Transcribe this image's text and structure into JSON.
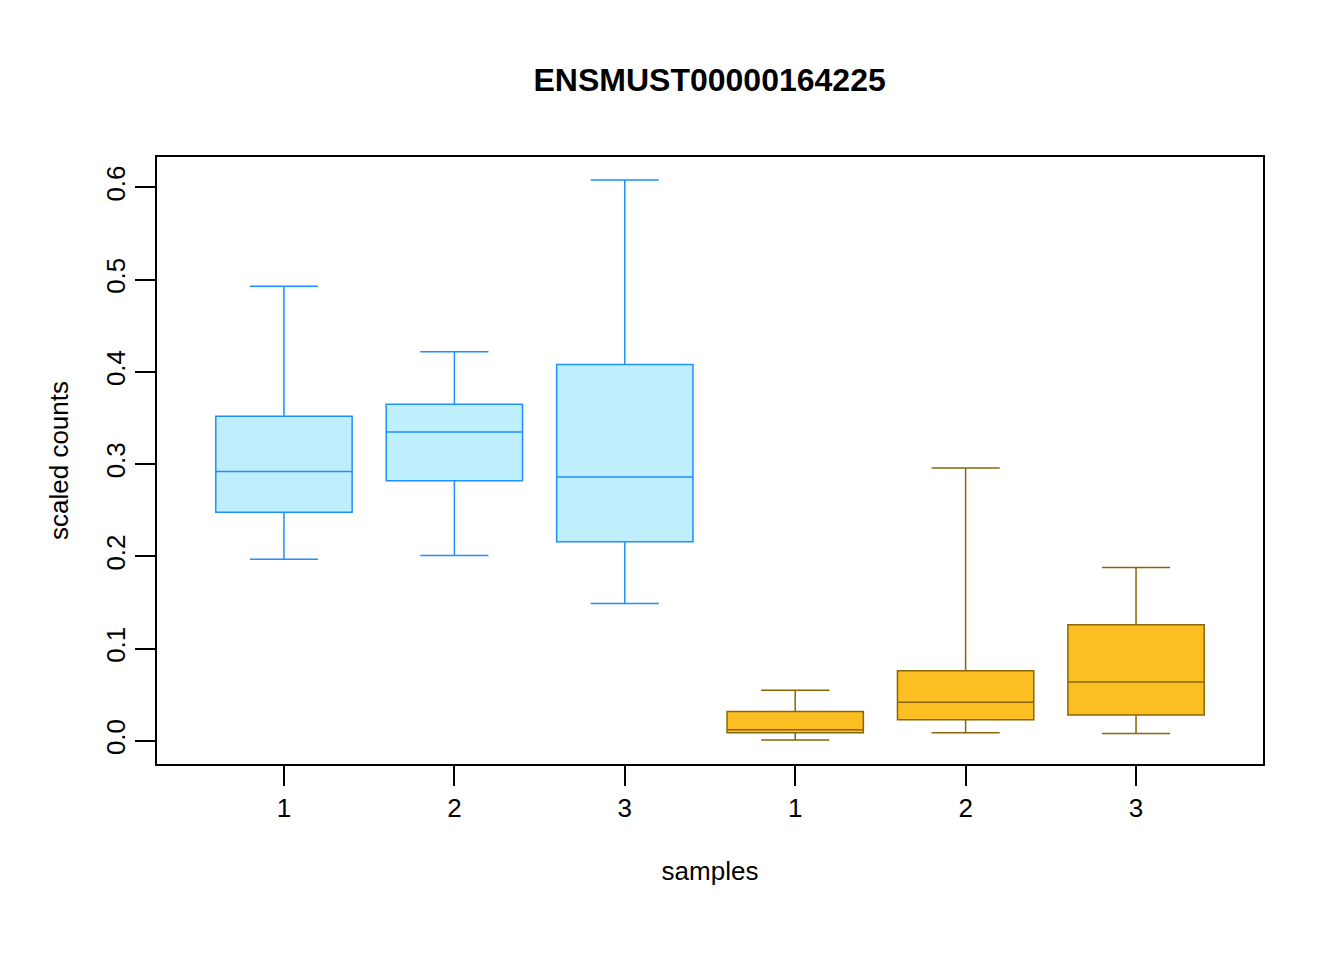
{
  "chart_data": {
    "type": "box",
    "title": "ENSMUST00000164225",
    "x_label": "samples",
    "y_label": "scaled counts",
    "categories": [
      "1",
      "2",
      "3",
      "1",
      "2",
      "3"
    ],
    "ylim": [
      -0.025,
      0.633
    ],
    "yticks": [
      {
        "value": 0,
        "label": "0.0"
      },
      0.1,
      0.2,
      0.3,
      0.4,
      0.5,
      0.6
    ],
    "grid": false,
    "series": [
      {
        "color": "#1e90ff",
        "values": [
          {
            "low": 0.197,
            "q1": 0.248,
            "median": 0.292,
            "q3": 0.352,
            "high": 0.493
          },
          {
            "low": 0.201,
            "q1": 0.282,
            "median": 0.335,
            "q3": 0.365,
            "high": 0.422
          },
          {
            "low": 0.149,
            "q1": 0.216,
            "median": 0.286,
            "q3": 0.408,
            "high": 0.608
          },
          null,
          null,
          null
        ]
      },
      {
        "color": "#8b6508",
        "values": [
          null,
          null,
          null,
          {
            "low": 0.001,
            "q1": 0.009,
            "median": 0.012,
            "q3": 0.032,
            "high": 0.055
          },
          {
            "low": 0.009,
            "q1": 0.023,
            "median": 0.042,
            "q3": 0.076,
            "high": 0.296
          },
          {
            "low": 0.008,
            "q1": 0.028,
            "median": 0.064,
            "q3": 0.126,
            "high": 0.188
          }
        ]
      }
    ]
  }
}
